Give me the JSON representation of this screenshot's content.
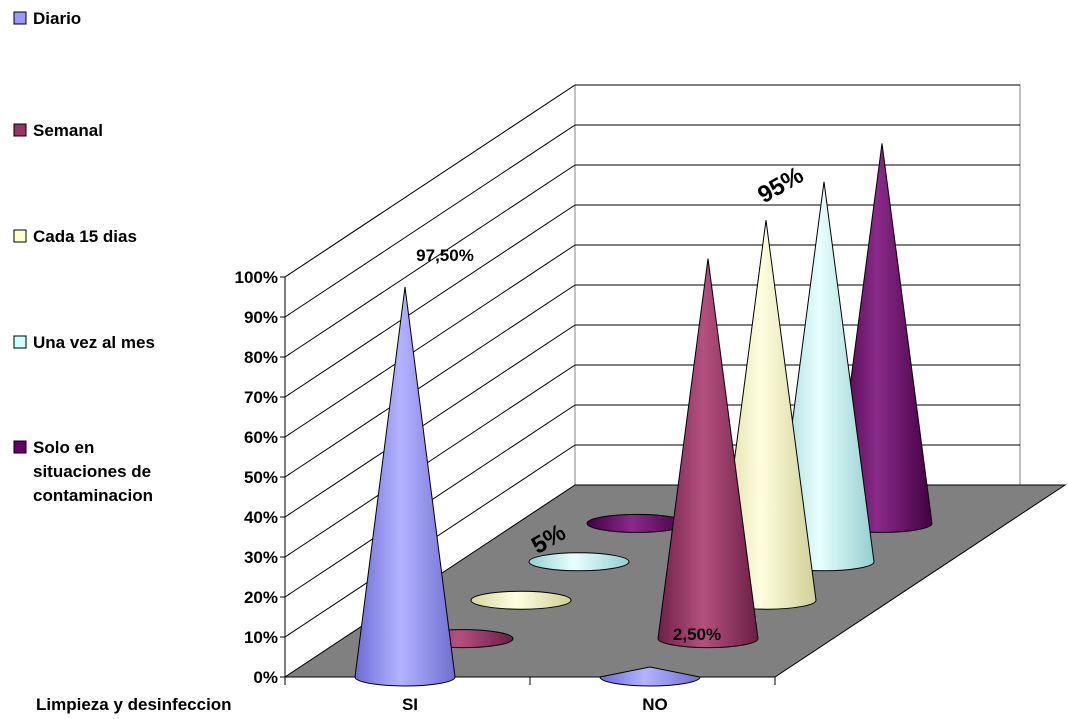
{
  "chart_data": {
    "type": "bar",
    "style": "3d-cone",
    "categories": [
      "SI",
      "NO"
    ],
    "xlabel": "Limpieza y desinfeccion",
    "ylabel": "",
    "ylim": [
      0,
      100
    ],
    "yticks": [
      "0%",
      "10%",
      "20%",
      "30%",
      "40%",
      "50%",
      "60%",
      "70%",
      "80%",
      "90%",
      "100%"
    ],
    "grid": true,
    "legend_position": "left",
    "series": [
      {
        "name": "Diario",
        "values": [
          97.5,
          2.5
        ],
        "color": "#9999ff"
      },
      {
        "name": "Semanal",
        "values": [
          0,
          95
        ],
        "color": "#993366"
      },
      {
        "name": "Cada 15 dias",
        "values": [
          0,
          95
        ],
        "color": "#ffffcc"
      },
      {
        "name": "Una vez al mes",
        "values": [
          0,
          95
        ],
        "color": "#ccffff"
      },
      {
        "name": "Solo en situaciones de contaminacion",
        "values": [
          0,
          95
        ],
        "color": "#660066"
      }
    ],
    "data_labels": [
      {
        "text": "97,50%"
      },
      {
        "text": "2,50%"
      },
      {
        "text": "5%"
      },
      {
        "text": "95%"
      }
    ]
  }
}
